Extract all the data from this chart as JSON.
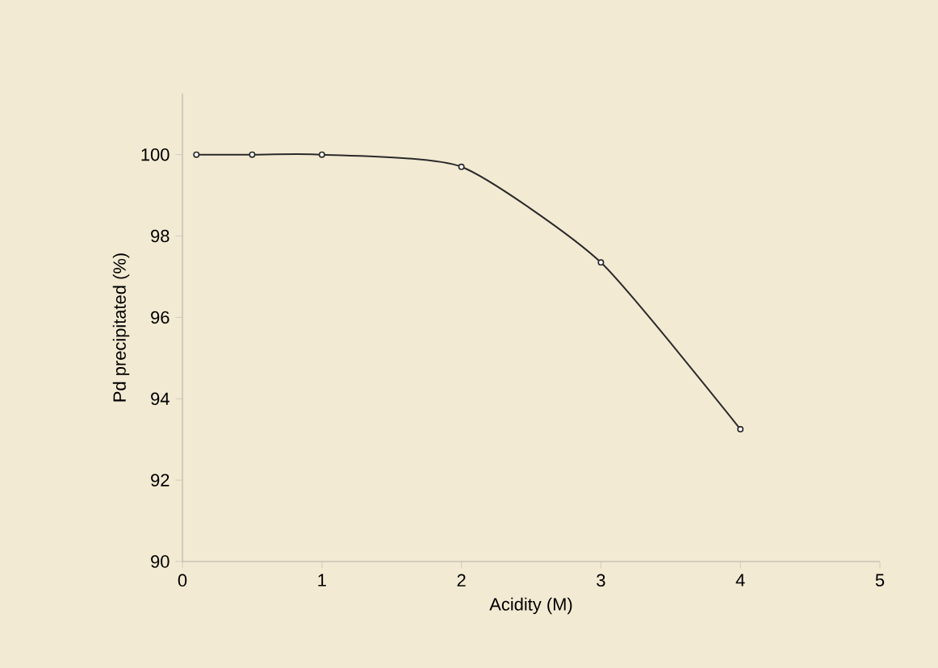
{
  "chart_data": {
    "type": "line",
    "xlabel": "Acidity (M)",
    "ylabel": "Pd  precipitated (%)",
    "x": [
      0.1,
      0.5,
      1,
      2,
      3,
      4
    ],
    "series": [
      {
        "color": "#2a2a2a",
        "values": [
          100,
          100,
          100,
          99.7,
          97.35,
          93.25
        ]
      }
    ],
    "xlim": [
      0,
      5
    ],
    "xticks": [
      0,
      1,
      2,
      3,
      4,
      5
    ],
    "ylim": [
      90,
      101.5
    ],
    "yticks": [
      90,
      92,
      94,
      96,
      98,
      100
    ],
    "marker": "circle",
    "line_style": "solid"
  }
}
